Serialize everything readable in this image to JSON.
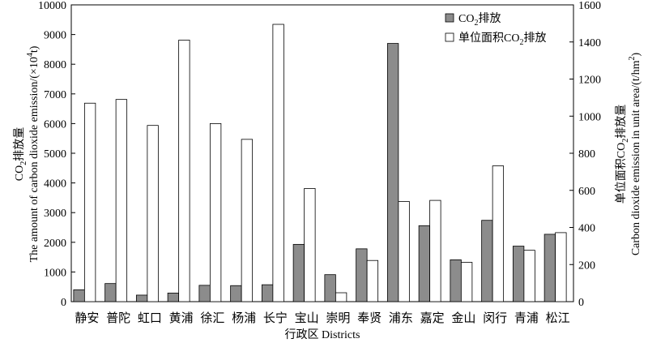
{
  "chart_data": {
    "type": "bar",
    "xlabel": "行政区 Districts",
    "ylabel_left": {
      "line1_main": "CO",
      "line1_sub": "2",
      "line1_tail": "排放量",
      "line2_main": "The amount of carbon dioxide emission/(×10",
      "line2_sup": "4",
      "line2_tail": "t)"
    },
    "ylabel_right": {
      "line1_main": "单位面积CO",
      "line1_sub": "2",
      "line1_tail": "排放量",
      "line2_main": "Carbon dioxide emission in unit area/(t/hm",
      "line2_sup": "2",
      "line2_tail": ")"
    },
    "categories": [
      "静安",
      "普陀",
      "虹口",
      "黄浦",
      "徐汇",
      "杨浦",
      "长宁",
      "宝山",
      "崇明",
      "奉贤",
      "浦东",
      "嘉定",
      "金山",
      "闵行",
      "青浦",
      "松江"
    ],
    "series": [
      {
        "name_main": "CO",
        "name_sub": "2",
        "name_tail": "排放",
        "axis": "left",
        "color": "#8c8c8c",
        "values": [
          400,
          610,
          220,
          290,
          550,
          540,
          570,
          1930,
          910,
          1780,
          8700,
          2560,
          1410,
          2740,
          1870,
          2270
        ]
      },
      {
        "name_main": "单位面积CO",
        "name_sub": "2",
        "name_tail": "排放",
        "axis": "right",
        "color": "#f7f7f7",
        "values": [
          1070,
          1090,
          950,
          1410,
          960,
          875,
          1495,
          610,
          48,
          222,
          540,
          546,
          212,
          732,
          277,
          372
        ]
      }
    ],
    "ylim_left": [
      0,
      10000
    ],
    "yticks_left": [
      0,
      1000,
      2000,
      3000,
      4000,
      5000,
      6000,
      7000,
      8000,
      9000,
      10000
    ],
    "ylim_right": [
      0,
      1600
    ],
    "yticks_right": [
      0,
      200,
      400,
      600,
      800,
      1000,
      1200,
      1400,
      1600
    ],
    "legend_position": "top-right",
    "grid": false
  }
}
